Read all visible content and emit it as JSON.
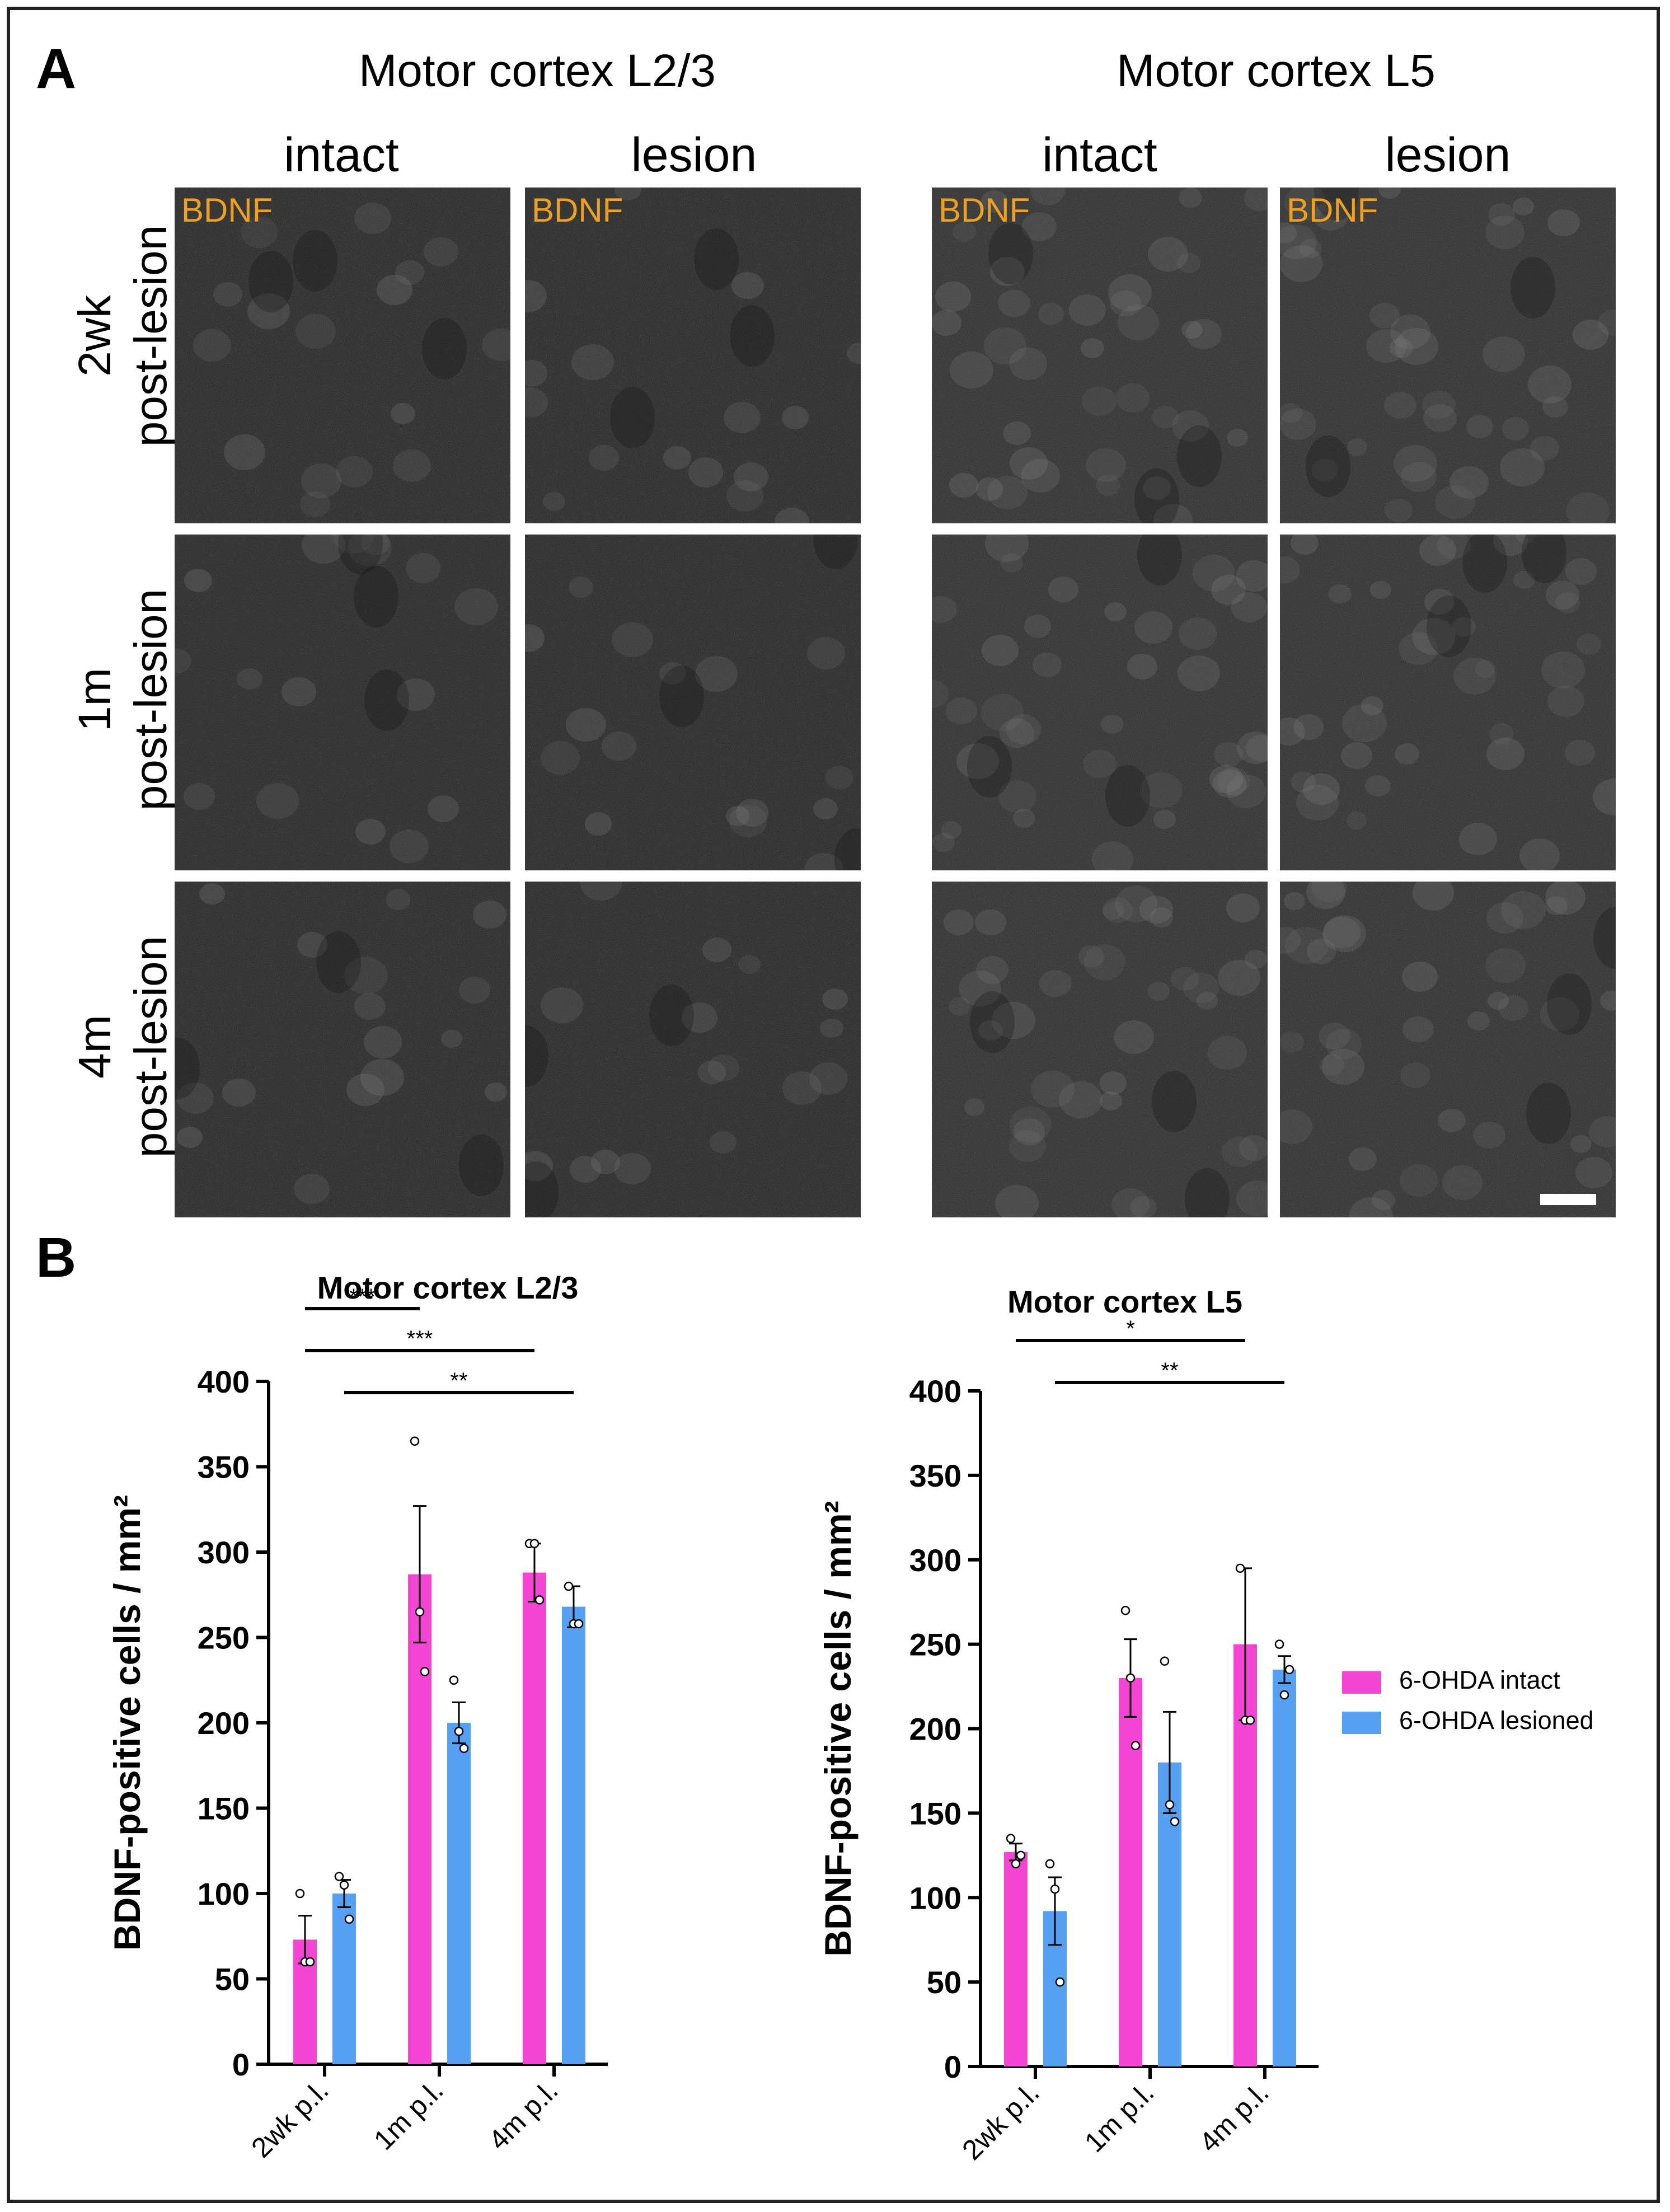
{
  "panel_a": {
    "letter": "A",
    "groups": [
      {
        "title": "Motor cortex L2/3",
        "columns": [
          "intact",
          "lesion"
        ]
      },
      {
        "title": "Motor cortex L5",
        "columns": [
          "intact",
          "lesion"
        ]
      }
    ],
    "rows": [
      {
        "line1": "2wk",
        "line2": "post-lesion"
      },
      {
        "line1": "1m",
        "line2": "post-lesion"
      },
      {
        "line1": "4m",
        "line2": "post-lesion"
      }
    ],
    "stain_label": "BDNF",
    "stain_color": "#f0a020"
  },
  "panel_b": {
    "letter": "B"
  },
  "legend": {
    "items": [
      {
        "label": "6-OHDA intact",
        "color": "#f545d4"
      },
      {
        "label": "6-OHDA lesioned",
        "color": "#55a0f2"
      }
    ],
    "placement": "right"
  },
  "chart_data": [
    {
      "type": "bar",
      "title": "Motor cortex L2/3",
      "ylabel": "BDNF-positive cells / mm²",
      "xlabel": "",
      "ylim": [
        0,
        400
      ],
      "yticks": [
        0,
        50,
        100,
        150,
        200,
        250,
        300,
        350,
        400
      ],
      "categories": [
        "2wk p.l.",
        "1m p.l.",
        "4m p.l."
      ],
      "series": [
        {
          "name": "6-OHDA intact",
          "color": "#f545d4",
          "values": [
            73,
            287,
            288
          ],
          "sem": [
            14,
            40,
            17
          ],
          "points": [
            [
              100,
              60,
              60
            ],
            [
              365,
              265,
              230
            ],
            [
              305,
              305,
              272
            ]
          ]
        },
        {
          "name": "6-OHDA lesioned",
          "color": "#55a0f2",
          "values": [
            100,
            200,
            268
          ],
          "sem": [
            8,
            12,
            12
          ],
          "points": [
            [
              110,
              105,
              85
            ],
            [
              225,
              195,
              185
            ],
            [
              280,
              258,
              258
            ]
          ]
        }
      ],
      "significance": [
        {
          "label": "***",
          "from": [
            0,
            0
          ],
          "to": [
            1,
            0
          ]
        },
        {
          "label": "***",
          "from": [
            0,
            0
          ],
          "to": [
            2,
            0
          ]
        },
        {
          "label": "**",
          "from": [
            0,
            1
          ],
          "to": [
            2,
            1
          ]
        }
      ]
    },
    {
      "type": "bar",
      "title": "Motor cortex L5",
      "ylabel": "BDNF-positive cells / mm²",
      "xlabel": "",
      "ylim": [
        0,
        400
      ],
      "yticks": [
        0,
        50,
        100,
        150,
        200,
        250,
        300,
        350,
        400
      ],
      "categories": [
        "2wk p.l.",
        "1m p.l.",
        "4m p.l."
      ],
      "series": [
        {
          "name": "6-OHDA intact",
          "color": "#f545d4",
          "values": [
            127,
            230,
            250
          ],
          "sem": [
            5,
            23,
            45
          ],
          "points": [
            [
              135,
              120,
              125
            ],
            [
              270,
              230,
              190
            ],
            [
              295,
              205,
              205
            ]
          ]
        },
        {
          "name": "6-OHDA lesioned",
          "color": "#55a0f2",
          "values": [
            92,
            180,
            235
          ],
          "sem": [
            20,
            30,
            8
          ],
          "points": [
            [
              120,
              105,
              50
            ],
            [
              240,
              155,
              145
            ],
            [
              250,
              220,
              235
            ]
          ]
        }
      ],
      "significance": [
        {
          "label": "*",
          "from": [
            0,
            0
          ],
          "to": [
            2,
            0
          ]
        },
        {
          "label": "**",
          "from": [
            0,
            1
          ],
          "to": [
            2,
            1
          ]
        }
      ]
    }
  ]
}
